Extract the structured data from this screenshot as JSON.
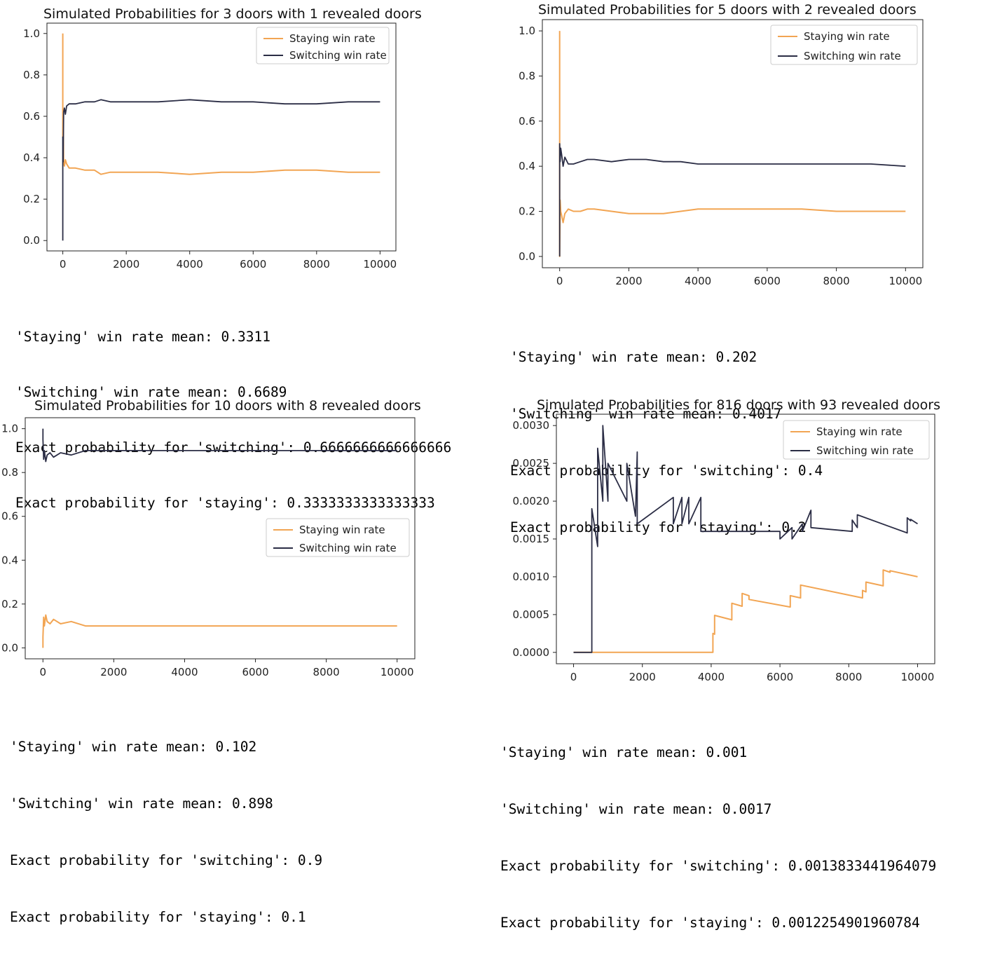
{
  "colors": {
    "staying": "#f2a553",
    "switching": "#2b2d45"
  },
  "chart_data": [
    {
      "type": "line",
      "title": "Simulated Probabilities for 3 doors with 1 revealed doors",
      "xlabel": "",
      "ylabel": "",
      "xlim": [
        -500,
        10500
      ],
      "ylim": [
        -0.05,
        1.05
      ],
      "xticks": [
        "0",
        "2000",
        "4000",
        "6000",
        "8000",
        "10000"
      ],
      "xtick_values": [
        0,
        2000,
        4000,
        6000,
        8000,
        10000
      ],
      "yticks": [
        "0.0",
        "0.2",
        "0.4",
        "0.6",
        "0.8",
        "1.0"
      ],
      "ytick_values": [
        0,
        0.2,
        0.4,
        0.6,
        0.8,
        1.0
      ],
      "legend": {
        "position": "top-right",
        "entries": [
          "Staying win rate",
          "Switching win rate"
        ]
      },
      "series": [
        {
          "name": "Staying win rate",
          "x": [
            0,
            0,
            10,
            25,
            50,
            80,
            120,
            200,
            400,
            700,
            1000,
            1200,
            1500,
            2000,
            2500,
            3000,
            4000,
            5000,
            6000,
            7000,
            8000,
            9000,
            10000
          ],
          "y": [
            1.0,
            0.5,
            0.62,
            0.38,
            0.36,
            0.39,
            0.37,
            0.35,
            0.35,
            0.34,
            0.34,
            0.32,
            0.33,
            0.33,
            0.33,
            0.33,
            0.32,
            0.33,
            0.33,
            0.34,
            0.34,
            0.33,
            0.33
          ]
        },
        {
          "name": "Switching win rate",
          "x": [
            0,
            0,
            10,
            25,
            50,
            80,
            120,
            200,
            400,
            700,
            1000,
            1200,
            1500,
            2000,
            2500,
            3000,
            4000,
            5000,
            6000,
            7000,
            8000,
            9000,
            10000
          ],
          "y": [
            0.0,
            0.5,
            0.38,
            0.62,
            0.64,
            0.61,
            0.65,
            0.66,
            0.66,
            0.67,
            0.67,
            0.68,
            0.67,
            0.67,
            0.67,
            0.67,
            0.68,
            0.67,
            0.67,
            0.66,
            0.66,
            0.67,
            0.67
          ]
        }
      ],
      "output": [
        "'Staying' win rate mean: 0.3311",
        "'Switching' win rate mean: 0.6689",
        "Exact probability for 'switching': 0.6666666666666666",
        "Exact probability for 'staying': 0.3333333333333333"
      ]
    },
    {
      "type": "line",
      "title": "Simulated Probabilities for 5 doors with 2 revealed doors",
      "xlabel": "",
      "ylabel": "",
      "xlim": [
        -500,
        10500
      ],
      "ylim": [
        -0.05,
        1.05
      ],
      "xticks": [
        "0",
        "2000",
        "4000",
        "6000",
        "8000",
        "10000"
      ],
      "xtick_values": [
        0,
        2000,
        4000,
        6000,
        8000,
        10000
      ],
      "yticks": [
        "0.0",
        "0.2",
        "0.4",
        "0.6",
        "0.8",
        "1.0"
      ],
      "ytick_values": [
        0,
        0.2,
        0.4,
        0.6,
        0.8,
        1.0
      ],
      "legend": {
        "position": "top-right",
        "entries": [
          "Staying win rate",
          "Switching win rate"
        ]
      },
      "series": [
        {
          "name": "Staying win rate",
          "x": [
            0,
            0,
            15,
            30,
            60,
            100,
            150,
            250,
            400,
            600,
            800,
            1000,
            1500,
            2000,
            2500,
            3000,
            3500,
            4000,
            5000,
            6000,
            7000,
            8000,
            9000,
            10000
          ],
          "y": [
            1.0,
            0.0,
            0.25,
            0.2,
            0.18,
            0.15,
            0.19,
            0.21,
            0.2,
            0.2,
            0.21,
            0.21,
            0.2,
            0.19,
            0.19,
            0.19,
            0.2,
            0.21,
            0.21,
            0.21,
            0.21,
            0.2,
            0.2,
            0.2
          ]
        },
        {
          "name": "Switching win rate",
          "x": [
            0,
            0,
            15,
            30,
            60,
            100,
            150,
            250,
            400,
            600,
            800,
            1000,
            1500,
            2000,
            2500,
            3000,
            3500,
            4000,
            5000,
            6000,
            7000,
            8000,
            9000,
            10000
          ],
          "y": [
            0.0,
            0.5,
            0.42,
            0.48,
            0.45,
            0.4,
            0.44,
            0.41,
            0.41,
            0.42,
            0.43,
            0.43,
            0.42,
            0.43,
            0.43,
            0.42,
            0.42,
            0.41,
            0.41,
            0.41,
            0.41,
            0.41,
            0.41,
            0.4
          ]
        }
      ],
      "output": [
        "'Staying' win rate mean: 0.202",
        "'Switching' win rate mean: 0.4017",
        "Exact probability for 'switching': 0.4",
        "Exact probability for 'staying': 0.2"
      ]
    },
    {
      "type": "line",
      "title": "Simulated Probabilities for 10 doors with 8 revealed doors",
      "xlabel": "",
      "ylabel": "",
      "xlim": [
        -500,
        10500
      ],
      "ylim": [
        -0.05,
        1.05
      ],
      "xticks": [
        "0",
        "2000",
        "4000",
        "6000",
        "8000",
        "10000"
      ],
      "xtick_values": [
        0,
        2000,
        4000,
        6000,
        8000,
        10000
      ],
      "yticks": [
        "0.0",
        "0.2",
        "0.4",
        "0.6",
        "0.8",
        "1.0"
      ],
      "ytick_values": [
        0,
        0.2,
        0.4,
        0.6,
        0.8,
        1.0
      ],
      "legend": {
        "position": "center-right",
        "entries": [
          "Staying win rate",
          "Switching win rate"
        ]
      },
      "series": [
        {
          "name": "Staying win rate",
          "x": [
            0,
            0,
            20,
            40,
            80,
            120,
            200,
            300,
            500,
            800,
            1200,
            2000,
            3000,
            4000,
            5000,
            6000,
            7000,
            8000,
            9000,
            10000
          ],
          "y": [
            0.0,
            0.05,
            0.14,
            0.1,
            0.15,
            0.12,
            0.11,
            0.13,
            0.11,
            0.12,
            0.1,
            0.1,
            0.1,
            0.1,
            0.1,
            0.1,
            0.1,
            0.1,
            0.1,
            0.1
          ]
        },
        {
          "name": "Switching win rate",
          "x": [
            0,
            0,
            20,
            40,
            80,
            120,
            200,
            300,
            500,
            800,
            1200,
            2000,
            3000,
            4000,
            5000,
            6000,
            7000,
            8000,
            9000,
            10000
          ],
          "y": [
            1.0,
            0.95,
            0.86,
            0.9,
            0.85,
            0.88,
            0.89,
            0.87,
            0.89,
            0.88,
            0.9,
            0.9,
            0.9,
            0.9,
            0.9,
            0.9,
            0.9,
            0.9,
            0.9,
            0.9
          ]
        }
      ],
      "output": [
        "'Staying' win rate mean: 0.102",
        "'Switching' win rate mean: 0.898",
        "Exact probability for 'switching': 0.9",
        "Exact probability for 'staying': 0.1"
      ]
    },
    {
      "type": "line",
      "title": "Simulated Probabilities for 816 doors with 93 revealed doors",
      "xlabel": "",
      "ylabel": "",
      "xlim": [
        -500,
        10500
      ],
      "ylim": [
        -0.00015,
        0.00315
      ],
      "xticks": [
        "0",
        "2000",
        "4000",
        "6000",
        "8000",
        "10000"
      ],
      "xtick_values": [
        0,
        2000,
        4000,
        6000,
        8000,
        10000
      ],
      "yticks": [
        "0.0000",
        "0.0005",
        "0.0010",
        "0.0015",
        "0.0020",
        "0.0025",
        "0.0030"
      ],
      "ytick_values": [
        0,
        0.0005,
        0.001,
        0.0015,
        0.002,
        0.0025,
        0.003
      ],
      "legend": {
        "position": "top-right",
        "entries": [
          "Staying win rate",
          "Switching win rate"
        ]
      },
      "series": [
        {
          "name": "Staying win rate",
          "x": [
            0,
            4050,
            4050,
            4100,
            4100,
            4600,
            4600,
            4900,
            4900,
            5100,
            5100,
            6300,
            6300,
            6600,
            6600,
            8400,
            8400,
            8500,
            8500,
            9000,
            9000,
            9200,
            9200,
            10000
          ],
          "y": [
            0,
            0,
            0.00025,
            0.00024,
            0.00049,
            0.00043,
            0.00065,
            0.00061,
            0.00078,
            0.00075,
            0.0007,
            0.0006,
            0.00075,
            0.00072,
            0.00089,
            0.00072,
            0.00082,
            0.0008,
            0.00093,
            0.00088,
            0.00109,
            0.00106,
            0.00108,
            0.001
          ]
        },
        {
          "name": "Switching win rate",
          "x": [
            0,
            530,
            530,
            700,
            700,
            850,
            850,
            1000,
            1000,
            1550,
            1550,
            1800,
            1800,
            1850,
            1850,
            2900,
            2900,
            3150,
            3150,
            3350,
            3350,
            3700,
            3700,
            6000,
            6000,
            6350,
            6350,
            6650,
            6650,
            6900,
            6900,
            8100,
            8100,
            8250,
            8250,
            9700,
            9700,
            9800,
            9800,
            10000
          ],
          "y": [
            0,
            0,
            0.0019,
            0.0014,
            0.0027,
            0.002,
            0.003,
            0.002,
            0.0025,
            0.002,
            0.0025,
            0.0018,
            0.0018,
            0.00265,
            0.0017,
            0.00205,
            0.0017,
            0.00205,
            0.0017,
            0.00205,
            0.0017,
            0.00205,
            0.0016,
            0.0016,
            0.0015,
            0.00165,
            0.0015,
            0.0017,
            0.0016,
            0.00188,
            0.00165,
            0.0016,
            0.00175,
            0.00165,
            0.00182,
            0.00158,
            0.00178,
            0.00174,
            0.00176,
            0.0017
          ]
        }
      ],
      "output": [
        "'Staying' win rate mean: 0.001",
        "'Switching' win rate mean: 0.0017",
        "Exact probability for 'switching': 0.0013833441964079",
        "Exact probability for 'staying': 0.0012254901960784"
      ]
    }
  ]
}
